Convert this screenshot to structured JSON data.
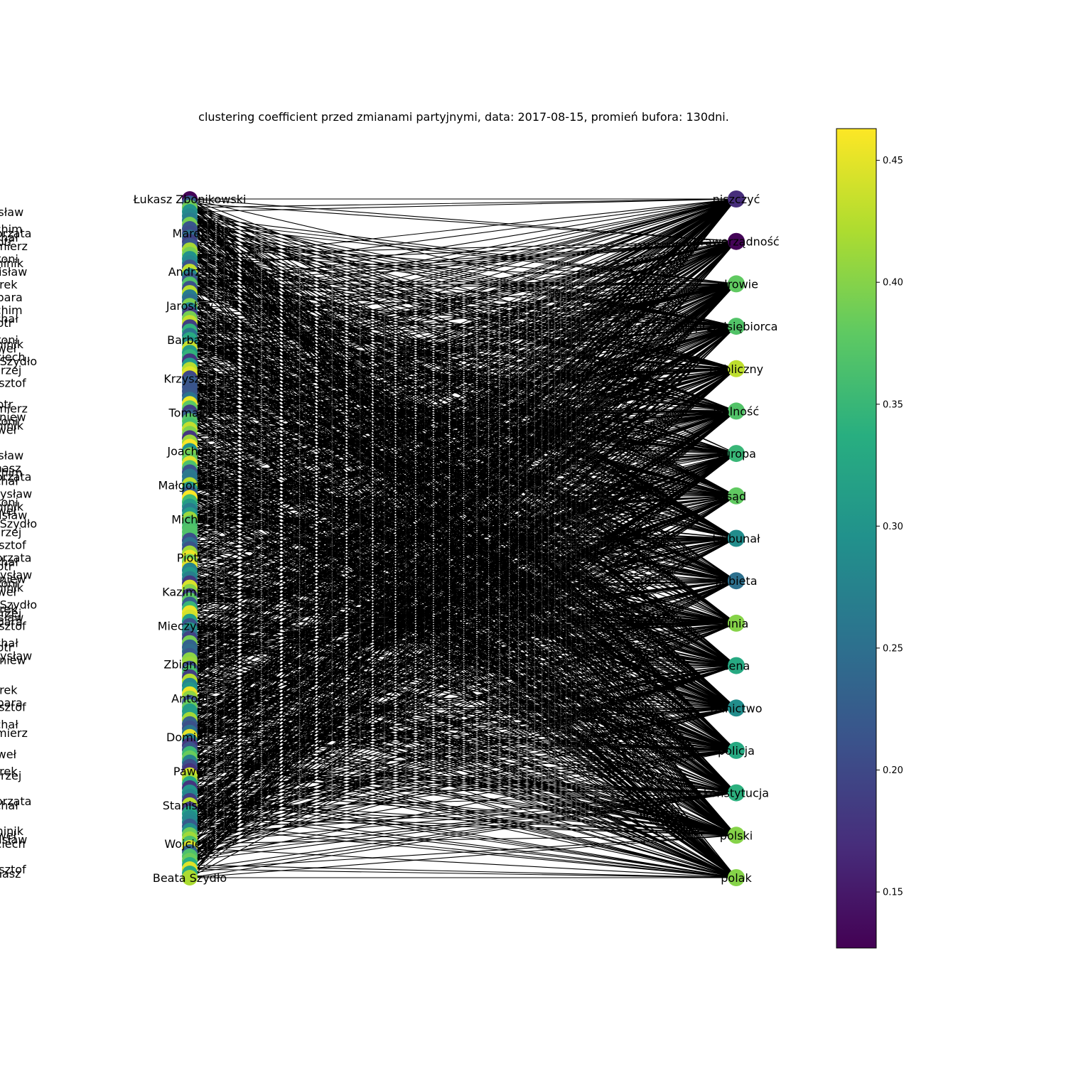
{
  "title": "clustering coefficient przed zmianami partyjnymi, data: 2017-08-15, promień bufora: 130dni.",
  "colorbar": {
    "colormap": "viridis",
    "min": 0.127,
    "max": 0.463,
    "ticks": [
      "0.15",
      "0.20",
      "0.25",
      "0.30",
      "0.35",
      "0.40",
      "0.45"
    ],
    "tick_values": [
      0.15,
      0.2,
      0.25,
      0.3,
      0.35,
      0.4,
      0.45
    ]
  },
  "left_nodes": {
    "labels": [
      "Łukasz Zbonikowski",
      "Beata Szydło",
      "Marek",
      "Andrzej",
      "Jarosław",
      "Barbara",
      "Krzysztof",
      "Tomasz",
      "Joachim",
      "Małgorzata",
      "Michał",
      "Piotr",
      "Kazimierz",
      "Mieczysław",
      "Zbigniew",
      "Antoni",
      "Dominik",
      "Paweł",
      "Stanisław",
      "Wojciech"
    ],
    "visible_count": 20,
    "total_count": 160,
    "first_value": 0.13,
    "last_value": 0.42
  },
  "right_nodes": [
    {
      "label": "niszczyć",
      "value": 0.17
    },
    {
      "label": "praworządność",
      "value": 0.13
    },
    {
      "label": "zdrowie",
      "value": 0.38
    },
    {
      "label": "przedsiębiorca",
      "value": 0.37
    },
    {
      "label": "publiczny",
      "value": 0.43
    },
    {
      "label": "wolność",
      "value": 0.37
    },
    {
      "label": "europa",
      "value": 0.35
    },
    {
      "label": "sąd",
      "value": 0.38
    },
    {
      "label": "trybunał",
      "value": 0.29
    },
    {
      "label": "kobieta",
      "value": 0.25
    },
    {
      "label": "unia",
      "value": 0.4
    },
    {
      "label": "cena",
      "value": 0.33
    },
    {
      "label": "rolnictwo",
      "value": 0.29
    },
    {
      "label": "policja",
      "value": 0.33
    },
    {
      "label": "konstytucja",
      "value": 0.34
    },
    {
      "label": "polski",
      "value": 0.4
    },
    {
      "label": "polak",
      "value": 0.4
    }
  ],
  "edges": {
    "per_right_node": 90
  }
}
